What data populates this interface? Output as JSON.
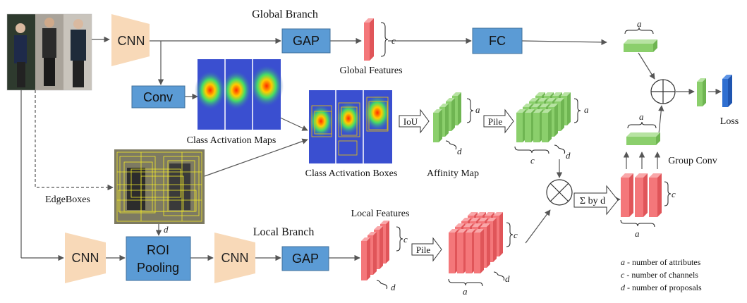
{
  "colors": {
    "module_fill": "#5b9bd5",
    "module_stroke": "#41719c",
    "cnn_fill": "#f8d9b8",
    "feature_red": "#f4777a",
    "feature_red_top": "#f9a7a9",
    "feature_red_side": "#e05559",
    "feature_green": "#8bcf6c",
    "feature_green_top": "#b7e3a2",
    "feature_green_side": "#6fb552",
    "loss_blue": "#2f6fd1",
    "arrow": "#555555"
  },
  "labels": {
    "global_branch": "Global Branch",
    "local_branch": "Local Branch",
    "global_features": "Global Features",
    "local_features": "Local Features",
    "class_activation_maps": "Class Activation Maps",
    "class_activation_boxes": "Class Activation Boxes",
    "affinity_map": "Affinity Map",
    "edgeboxes": "EdgeBoxes",
    "group_conv": "Group Conv",
    "loss": "Loss"
  },
  "modules": {
    "cnn_top": "CNN",
    "cnn_bottom_left": "CNN",
    "cnn_bottom_mid": "CNN",
    "gap_top": "GAP",
    "gap_bottom": "GAP",
    "fc": "FC",
    "conv": "Conv",
    "roi_line1": "ROI",
    "roi_line2": "Pooling"
  },
  "operators": {
    "iou": "IoU",
    "pile_top": "Pile",
    "pile_bottom": "Pile",
    "sum_by_d": "Σ by d"
  },
  "dims": {
    "a": "a",
    "c": "c",
    "d": "d"
  },
  "legend": [
    {
      "sym": "a",
      "text": " - number of attributes"
    },
    {
      "sym": "c",
      "text": " - number of channels"
    },
    {
      "sym": "d",
      "text": " - number of proposals"
    }
  ]
}
